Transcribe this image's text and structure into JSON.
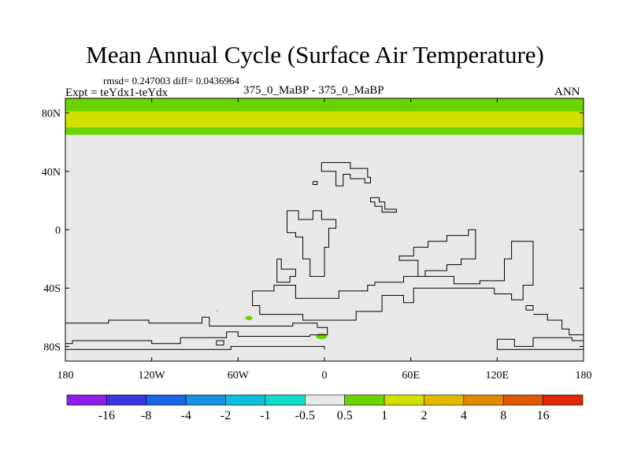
{
  "chart_data": {
    "type": "heatmap",
    "title": "Mean Annual Cycle (Surface Air Temperature)",
    "stats_text": "rmsd= 0.247003 diff= 0.0436964",
    "stats": {
      "rmsd": 0.247003,
      "diff": 0.0436964
    },
    "experiment_label": "Expt = teYdx1-teYdx",
    "case_label": "375_0_MaBP - 375_0_MaBP",
    "season": "ANN",
    "projection": "cylindrical equidistant",
    "xlim": [
      -180,
      180
    ],
    "ylim": [
      -90,
      90
    ],
    "x_ticks": [
      {
        "value": -180,
        "label": "180"
      },
      {
        "value": -120,
        "label": "120W"
      },
      {
        "value": -60,
        "label": "60W"
      },
      {
        "value": 0,
        "label": "0"
      },
      {
        "value": 60,
        "label": "60E"
      },
      {
        "value": 120,
        "label": "120E"
      },
      {
        "value": 180,
        "label": "180"
      }
    ],
    "y_ticks": [
      {
        "value": 80,
        "label": "80N"
      },
      {
        "value": 40,
        "label": "40N"
      },
      {
        "value": 0,
        "label": "0"
      },
      {
        "value": -40,
        "label": "40S"
      },
      {
        "value": -80,
        "label": "80S"
      }
    ],
    "colorbar": {
      "levels": [
        -16,
        -8,
        -4,
        -2,
        -1,
        -0.5,
        0.5,
        1,
        2,
        4,
        8,
        16
      ],
      "labels": [
        "-16",
        "-8",
        "-4",
        "-2",
        "-1",
        "-0.5",
        "0.5",
        "1",
        "2",
        "4",
        "8",
        "16"
      ],
      "colors": [
        "#8c1ee8",
        "#3838e0",
        "#1a64e6",
        "#1a90e0",
        "#10bcdc",
        "#10dcc8",
        "#e8e8e8",
        "#6ad400",
        "#d2e000",
        "#e0b800",
        "#e08a00",
        "#e05800",
        "#e02800"
      ]
    },
    "field_regions": [
      {
        "name": "arctic-band-outer",
        "range": "0.5 to 1",
        "color": "#6ad400",
        "lon": [
          -180,
          180
        ],
        "lat": [
          65,
          90
        ]
      },
      {
        "name": "arctic-band-inner",
        "range": "1 to 2",
        "color": "#d2e000",
        "lon": [
          -180,
          180
        ],
        "lat": [
          70,
          81
        ]
      },
      {
        "name": "south-atlantic-patch",
        "range": "0.5 to 1",
        "color": "#6ad400",
        "lon": [
          -55,
          -50
        ],
        "lat": [
          -62,
          -59
        ]
      },
      {
        "name": "weddell-patch",
        "range": "0.5 to 1",
        "color": "#6ad400",
        "lon": [
          -6,
          2
        ],
        "lat": [
          -75,
          -71
        ]
      },
      {
        "name": "small-speck",
        "range": "0.5 to 1",
        "color": "#6ad400",
        "lon": [
          -75,
          -74
        ],
        "lat": [
          -56,
          -55
        ]
      },
      {
        "name": "background",
        "range": "-0.5 to 0.5",
        "color": "#e8e8e8",
        "lon": [
          -180,
          180
        ],
        "lat": [
          -90,
          90
        ]
      }
    ],
    "coastlines": [
      [
        [
          -2,
          46
        ],
        [
          18,
          46
        ],
        [
          18,
          42
        ],
        [
          30,
          42
        ],
        [
          30,
          36
        ],
        [
          32,
          36
        ],
        [
          32,
          32
        ],
        [
          28,
          32
        ],
        [
          28,
          35
        ],
        [
          18,
          35
        ],
        [
          18,
          38
        ],
        [
          13,
          38
        ],
        [
          13,
          30
        ],
        [
          8,
          30
        ],
        [
          8,
          40
        ],
        [
          -2,
          40
        ],
        [
          -2,
          46
        ]
      ],
      [
        [
          -8,
          33
        ],
        [
          -5,
          33
        ],
        [
          -5,
          31
        ],
        [
          -8,
          31
        ],
        [
          -8,
          33
        ]
      ],
      [
        [
          32,
          22
        ],
        [
          38,
          22
        ],
        [
          38,
          19
        ],
        [
          42,
          19
        ],
        [
          42,
          14
        ],
        [
          50,
          14
        ],
        [
          50,
          12
        ],
        [
          40,
          12
        ],
        [
          40,
          16
        ],
        [
          35,
          16
        ],
        [
          35,
          19
        ],
        [
          32,
          19
        ],
        [
          32,
          22
        ]
      ],
      [
        [
          -26,
          13
        ],
        [
          -18,
          13
        ],
        [
          -18,
          7
        ],
        [
          -8,
          7
        ],
        [
          -8,
          13
        ],
        [
          -2,
          13
        ],
        [
          -2,
          7
        ],
        [
          8,
          7
        ],
        [
          8,
          1
        ],
        [
          3,
          1
        ],
        [
          3,
          -12
        ],
        [
          0,
          -12
        ],
        [
          0,
          -32
        ],
        [
          -10,
          -32
        ],
        [
          -10,
          -20
        ],
        [
          -15,
          -20
        ],
        [
          -15,
          -5
        ],
        [
          -20,
          -5
        ],
        [
          -20,
          -2
        ],
        [
          -26,
          -2
        ],
        [
          -26,
          13
        ]
      ],
      [
        [
          -33,
          -20
        ],
        [
          -30,
          -20
        ],
        [
          -30,
          -27
        ],
        [
          -20,
          -27
        ],
        [
          -20,
          -32
        ],
        [
          -24,
          -32
        ],
        [
          -24,
          -36
        ],
        [
          -33,
          -36
        ],
        [
          -33,
          -20
        ]
      ],
      [
        [
          -50,
          -42
        ],
        [
          -35,
          -42
        ],
        [
          -35,
          -38
        ],
        [
          -20,
          -38
        ],
        [
          -20,
          -47
        ],
        [
          10,
          -47
        ],
        [
          10,
          -42
        ],
        [
          30,
          -42
        ],
        [
          30,
          -38
        ],
        [
          35,
          -38
        ],
        [
          35,
          -36
        ],
        [
          55,
          -36
        ],
        [
          55,
          -32
        ],
        [
          70,
          -32
        ],
        [
          70,
          -28
        ],
        [
          85,
          -28
        ],
        [
          85,
          -24
        ],
        [
          95,
          -24
        ],
        [
          95,
          -20
        ],
        [
          105,
          -20
        ],
        [
          105,
          0
        ],
        [
          100,
          0
        ],
        [
          100,
          -4
        ],
        [
          85,
          -4
        ],
        [
          85,
          -8
        ],
        [
          72,
          -8
        ],
        [
          72,
          -12
        ],
        [
          62,
          -12
        ],
        [
          62,
          -18
        ],
        [
          52,
          -18
        ],
        [
          52,
          -21
        ],
        [
          65,
          -21
        ],
        [
          65,
          -32
        ],
        [
          90,
          -32
        ],
        [
          90,
          -37
        ],
        [
          108,
          -37
        ],
        [
          108,
          -35
        ],
        [
          125,
          -35
        ],
        [
          125,
          -20
        ],
        [
          130,
          -20
        ],
        [
          130,
          -8
        ],
        [
          145,
          -8
        ],
        [
          145,
          -38
        ],
        [
          138,
          -38
        ],
        [
          138,
          -48
        ],
        [
          130,
          -48
        ],
        [
          130,
          -44
        ],
        [
          118,
          -44
        ],
        [
          118,
          -40
        ],
        [
          62,
          -40
        ],
        [
          62,
          -50
        ],
        [
          55,
          -50
        ],
        [
          55,
          -45
        ],
        [
          40,
          -45
        ],
        [
          40,
          -56
        ],
        [
          22,
          -56
        ],
        [
          22,
          -62
        ],
        [
          -15,
          -62
        ],
        [
          -15,
          -58
        ],
        [
          -45,
          -58
        ],
        [
          -45,
          -52
        ],
        [
          -50,
          -52
        ],
        [
          -50,
          -42
        ]
      ],
      [
        [
          140,
          -52
        ],
        [
          145,
          -52
        ],
        [
          145,
          -55
        ],
        [
          140,
          -55
        ],
        [
          140,
          -52
        ]
      ],
      [
        [
          -180,
          -64
        ],
        [
          -150,
          -64
        ],
        [
          -150,
          -62
        ],
        [
          -122,
          -62
        ],
        [
          -122,
          -64
        ],
        [
          -85,
          -64
        ],
        [
          -85,
          -60
        ],
        [
          -80,
          -60
        ],
        [
          -80,
          -66
        ],
        [
          -22,
          -66
        ],
        [
          -22,
          -64
        ],
        [
          -5,
          -64
        ],
        [
          -5,
          -67
        ],
        [
          2,
          -67
        ],
        [
          2,
          -72
        ],
        [
          -10,
          -72
        ],
        [
          -10,
          -73
        ],
        [
          -60,
          -73
        ],
        [
          -60,
          -70
        ],
        [
          -68,
          -70
        ],
        [
          -68,
          -74
        ],
        [
          -100,
          -74
        ],
        [
          -100,
          -78
        ],
        [
          -120,
          -78
        ],
        [
          -120,
          -76
        ],
        [
          -175,
          -76
        ],
        [
          -175,
          -78
        ],
        [
          -180,
          -78
        ]
      ],
      [
        [
          -75,
          -76
        ],
        [
          -70,
          -76
        ],
        [
          -70,
          -79
        ],
        [
          -75,
          -79
        ],
        [
          -75,
          -76
        ]
      ],
      [
        [
          145,
          -58
        ],
        [
          155,
          -58
        ],
        [
          155,
          -62
        ],
        [
          165,
          -62
        ],
        [
          165,
          -68
        ],
        [
          170,
          -68
        ],
        [
          170,
          -72
        ],
        [
          180,
          -72
        ]
      ],
      [
        [
          180,
          -76
        ],
        [
          172,
          -76
        ],
        [
          172,
          -74
        ],
        [
          145,
          -74
        ],
        [
          145,
          -80
        ],
        [
          132,
          -80
        ],
        [
          132,
          -75
        ],
        [
          120,
          -75
        ],
        [
          120,
          -82
        ],
        [
          180,
          -82
        ]
      ],
      [
        [
          -180,
          -82
        ],
        [
          -65,
          -82
        ],
        [
          -65,
          -80
        ],
        [
          0,
          -80
        ],
        [
          0,
          -82
        ]
      ]
    ]
  }
}
